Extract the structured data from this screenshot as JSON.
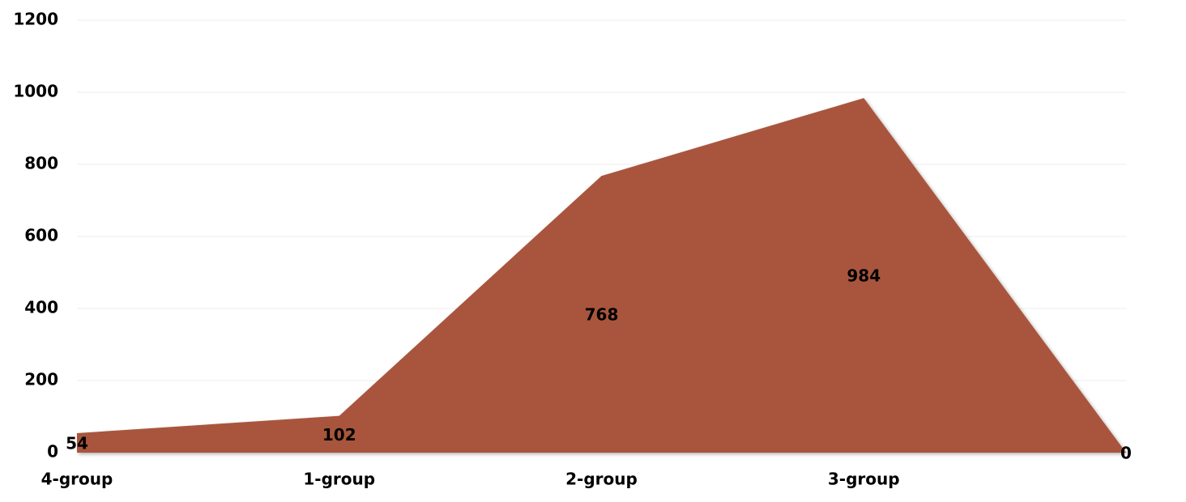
{
  "chart_data": {
    "type": "area",
    "categories": [
      "4-group",
      "1-group",
      "2-group",
      "3-group",
      null
    ],
    "values": [
      54,
      102,
      768,
      984,
      0
    ],
    "color": "#a9553d",
    "ylim": [
      0,
      1200
    ],
    "yticks": [
      0,
      200,
      400,
      600,
      800,
      1000,
      1200
    ],
    "grid": true
  }
}
